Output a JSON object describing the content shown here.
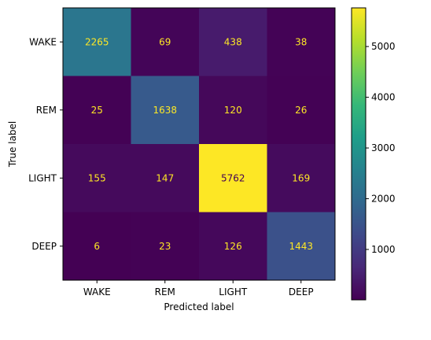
{
  "chart_data": {
    "type": "heatmap",
    "title": "",
    "xlabel": "Predicted label",
    "ylabel": "True label",
    "x_categories": [
      "WAKE",
      "REM",
      "LIGHT",
      "DEEP"
    ],
    "y_categories": [
      "WAKE",
      "REM",
      "LIGHT",
      "DEEP"
    ],
    "values": [
      [
        2265,
        69,
        438,
        38
      ],
      [
        25,
        1638,
        120,
        26
      ],
      [
        155,
        147,
        5762,
        169
      ],
      [
        6,
        23,
        126,
        1443
      ]
    ],
    "colormap": "viridis",
    "value_range": [
      6,
      5762
    ],
    "colorbar_ticks": [
      1000,
      2000,
      3000,
      4000,
      5000
    ],
    "grid": false,
    "text_colors": {
      "dark_cell": "#fde725",
      "light_cell": "#440154"
    }
  }
}
